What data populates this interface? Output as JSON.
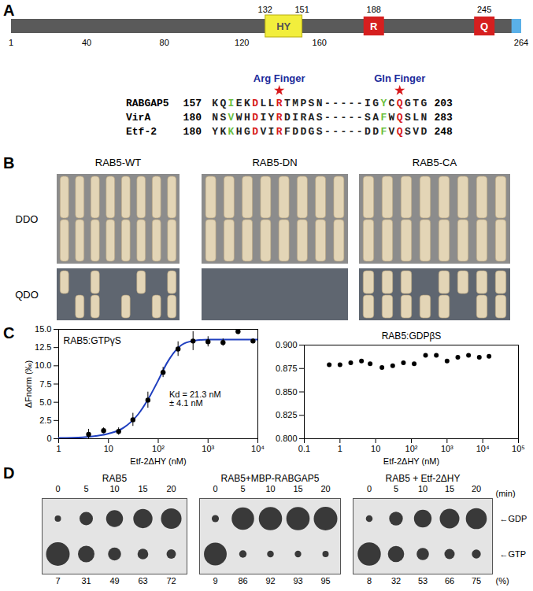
{
  "panel_labels": [
    "A",
    "B",
    "C",
    "D"
  ],
  "domain_diagram": {
    "range": [
      1,
      264
    ],
    "ticks": [
      1,
      40,
      80,
      120,
      160,
      264
    ],
    "bar_color": "#5a5a5a",
    "domains": [
      {
        "label": "HY",
        "start": 132,
        "end": 151,
        "color": "#f2ee3c"
      },
      {
        "label": "R",
        "position": 188,
        "color": "#d61f1f"
      },
      {
        "label": "Q",
        "position": 245,
        "color": "#d61f1f"
      }
    ],
    "c_terminal": {
      "start": 259,
      "end": 264,
      "color": "#5ab0e8"
    }
  },
  "alignment": {
    "rows": [
      {
        "name": "RABGAP5",
        "start": 157,
        "sequence": "KQIEKDLLRTMPSN-----IGYCQGTG",
        "end": 203
      },
      {
        "name": "VirA",
        "start": 180,
        "sequence": "NSVWHDIYRDIRAS-----SAFWQSLN",
        "end": 283
      },
      {
        "name": "Etf-2",
        "start": 180,
        "sequence": "YKKHGDVIRFDDGS-----DDFVQSVD",
        "end": 248
      }
    ],
    "highlights": [
      {
        "column": 2,
        "color": "#6cbf3f"
      },
      {
        "column": 5,
        "color": "#d7191c"
      },
      {
        "column": 8,
        "color": "#d7191c"
      },
      {
        "column": 21,
        "color": "#6cbf3f"
      },
      {
        "column": 23,
        "color": "#d7191c"
      }
    ],
    "motifs": [
      {
        "label": "Arg Finger",
        "column": 8
      },
      {
        "label": "Gln Finger",
        "column": 23
      }
    ]
  },
  "y2h": {
    "columns": [
      "RAB5-WT",
      "RAB5-DN",
      "RAB5-CA"
    ],
    "rows": [
      "DDO",
      "QDO"
    ]
  },
  "chart_data": [
    {
      "type": "scatter",
      "title": "RAB5:GTPγS",
      "xlabel": "Etf-2ΔHY (nM)",
      "ylabel": "ΔFnorm (‰)",
      "log": "x",
      "xlim": [
        1,
        10000
      ],
      "ylim": [
        0,
        15
      ],
      "xticks": [
        1,
        10,
        {
          "value": 100,
          "label": "10²"
        },
        {
          "value": 1000,
          "label": "10³"
        },
        {
          "value": 10000,
          "label": "10⁴"
        }
      ],
      "yticks": [
        0,
        2.5,
        {
          "value": 5,
          "label": "5.0"
        },
        7.5,
        {
          "value": 10,
          "label": "10.0"
        },
        12.5,
        {
          "value": 15,
          "label": "15.0"
        }
      ],
      "x": [
        4,
        8,
        16,
        31,
        62,
        125,
        250,
        500,
        1000,
        2000,
        4000,
        8000
      ],
      "values": [
        0.6,
        1.1,
        1.0,
        2.6,
        5.3,
        9.1,
        12.3,
        13.4,
        13.3,
        13.2,
        14.7,
        13.4
      ],
      "errors": [
        0.7,
        0.4,
        0.5,
        0.9,
        1.1,
        0.7,
        1.0,
        1.3,
        0.7,
        0.5,
        0.4,
        0.3
      ],
      "color": "#000000",
      "fit": {
        "x": [
          1,
          3,
          6,
          10,
          20,
          40,
          70,
          100,
          150,
          200,
          300,
          500,
          1000,
          3000,
          10000
        ],
        "values": [
          0.1,
          0.2,
          0.4,
          0.7,
          1.5,
          3.4,
          6.0,
          8.0,
          10.4,
          11.7,
          12.9,
          13.4,
          13.6,
          13.6,
          13.6
        ],
        "color": "#1f3fbf"
      },
      "annotations": [
        "Kd = 21.3 nM",
        "± 4.1 nM"
      ]
    },
    {
      "type": "scatter",
      "title": "RAB5:GDPβS",
      "xlabel": "Etf-2ΔHY (nM)",
      "log": "x",
      "xlim": [
        0.1,
        100000
      ],
      "ylim": [
        0.8,
        0.9
      ],
      "xticks": [
        0.1,
        1,
        10,
        {
          "value": 100,
          "label": "10²"
        },
        {
          "value": 1000,
          "label": "10³"
        },
        {
          "value": 10000,
          "label": "10⁴"
        },
        {
          "value": 100000,
          "label": "10⁵"
        }
      ],
      "yticks": [
        {
          "value": 0.8,
          "label": "0.800"
        },
        0.825,
        {
          "value": 0.85,
          "label": "0.850"
        },
        0.875,
        {
          "value": 0.9,
          "label": "0.900"
        }
      ],
      "x": [
        0.5,
        1,
        2,
        4,
        7,
        15,
        30,
        60,
        120,
        250,
        500,
        1000,
        2000,
        4000,
        8000,
        15000
      ],
      "values": [
        0.879,
        0.879,
        0.881,
        0.883,
        0.88,
        0.876,
        0.878,
        0.881,
        0.88,
        0.889,
        0.889,
        0.883,
        0.887,
        0.889,
        0.887,
        0.888
      ],
      "color": "#000000"
    }
  ],
  "tlc": {
    "times": [
      0,
      5,
      10,
      15,
      20
    ],
    "time_unit": "(min)",
    "percent_unit": "(%)",
    "row_labels": [
      "←GDP",
      "←GTP"
    ],
    "panels": [
      {
        "title": "RAB5",
        "percent_gdp": [
          7,
          31,
          49,
          63,
          72
        ]
      },
      {
        "title": "RAB5+MBP-RABGAP5",
        "percent_gdp": [
          9,
          86,
          92,
          93,
          95
        ]
      },
      {
        "title": "RAB5 + Etf-2ΔHY",
        "percent_gdp": [
          8,
          32,
          53,
          66,
          75
        ]
      }
    ]
  }
}
